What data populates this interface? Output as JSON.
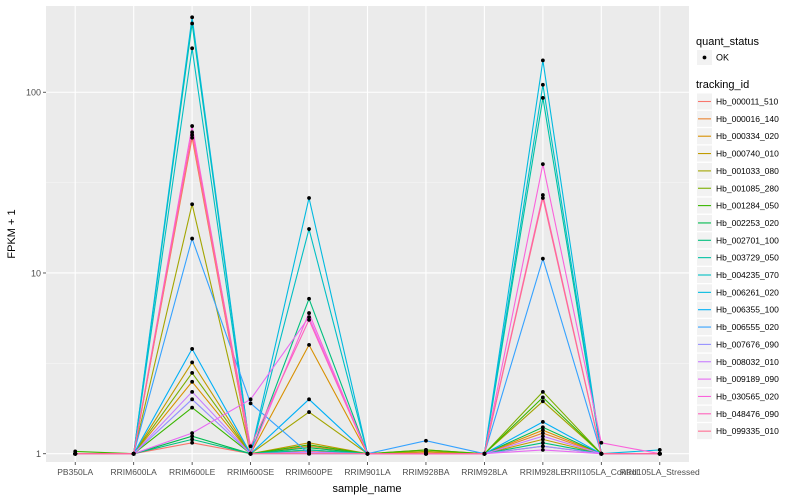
{
  "chart_data": {
    "type": "line",
    "xlabel": "sample_name",
    "ylabel": "FPKM + 1",
    "y_scale": "log10",
    "ylim": [
      0.9,
      300
    ],
    "y_ticks": [
      1,
      10,
      100
    ],
    "y_tick_labels": [
      "1",
      "10",
      "100"
    ],
    "categories": [
      "PB350LA",
      "RRIM600LA",
      "RRIM600LE",
      "RRIM600SE",
      "RRIM600PE",
      "RRIM901LA",
      "RRIM928BA",
      "RRIM928LA",
      "RRIM928LE",
      "RRII105LA_Control",
      "RRII105LA_Stressed"
    ],
    "grid": true,
    "background": "#ebebeb",
    "legend_position": "right",
    "legend_shape": {
      "title": "quant_status",
      "items": [
        "OK"
      ]
    },
    "legend_color": {
      "title": "tracking_id"
    },
    "series": [
      {
        "name": "Hb_000011_510",
        "color": "#F8766D",
        "values": [
          1.0,
          1.0,
          1.15,
          1.0,
          1.03,
          1.0,
          1.0,
          1.0,
          1.1,
          1.0,
          1.0
        ]
      },
      {
        "name": "Hb_000016_140",
        "color": "#EA8331",
        "values": [
          1.0,
          1.0,
          56.0,
          1.0,
          1.1,
          1.0,
          1.02,
          1.0,
          1.3,
          1.0,
          1.0
        ]
      },
      {
        "name": "Hb_000334_020",
        "color": "#D89000",
        "values": [
          1.0,
          1.0,
          2.5,
          1.0,
          4.0,
          1.0,
          1.05,
          1.0,
          1.35,
          1.0,
          1.0
        ]
      },
      {
        "name": "Hb_000740_010",
        "color": "#C09B00",
        "values": [
          1.0,
          1.0,
          3.2,
          1.0,
          1.15,
          1.0,
          1.0,
          1.0,
          1.2,
          1.0,
          1.0
        ]
      },
      {
        "name": "Hb_001033_080",
        "color": "#A3A500",
        "values": [
          1.0,
          1.0,
          24.0,
          1.0,
          1.7,
          1.0,
          1.03,
          1.0,
          1.95,
          1.0,
          1.0
        ]
      },
      {
        "name": "Hb_001085_280",
        "color": "#7CAE00",
        "values": [
          1.0,
          1.0,
          2.8,
          1.0,
          1.05,
          1.0,
          1.0,
          1.0,
          2.2,
          1.0,
          1.0
        ]
      },
      {
        "name": "Hb_001284_050",
        "color": "#39B600",
        "values": [
          1.03,
          1.0,
          1.8,
          1.0,
          1.12,
          1.0,
          1.05,
          1.0,
          2.05,
          1.0,
          1.0
        ]
      },
      {
        "name": "Hb_002253_020",
        "color": "#00BB4E",
        "values": [
          1.0,
          1.0,
          1.25,
          1.0,
          1.08,
          1.0,
          1.0,
          1.0,
          1.4,
          1.0,
          1.0
        ]
      },
      {
        "name": "Hb_002701_100",
        "color": "#00BF7D",
        "values": [
          1.0,
          1.0,
          1.2,
          1.0,
          7.2,
          1.0,
          1.0,
          1.0,
          1.15,
          1.0,
          1.0
        ]
      },
      {
        "name": "Hb_003729_050",
        "color": "#00C1A3",
        "values": [
          1.0,
          1.0,
          240.0,
          1.0,
          1.05,
          1.0,
          1.0,
          1.0,
          93.0,
          1.0,
          1.0
        ]
      },
      {
        "name": "Hb_004235_070",
        "color": "#00BFC4",
        "values": [
          1.0,
          1.0,
          175.0,
          1.0,
          17.5,
          1.0,
          1.0,
          1.0,
          110.0,
          1.0,
          1.0
        ]
      },
      {
        "name": "Hb_006261_020",
        "color": "#00BAE0",
        "values": [
          1.0,
          1.0,
          260.0,
          1.0,
          26.0,
          1.0,
          1.0,
          1.0,
          150.0,
          1.0,
          1.05
        ]
      },
      {
        "name": "Hb_006355_100",
        "color": "#00B0F6",
        "values": [
          1.0,
          1.0,
          3.8,
          1.0,
          2.0,
          1.0,
          1.0,
          1.0,
          1.5,
          1.0,
          1.0
        ]
      },
      {
        "name": "Hb_006555_020",
        "color": "#35A2FF",
        "values": [
          1.0,
          1.0,
          15.5,
          1.9,
          1.0,
          1.0,
          1.18,
          1.0,
          12.0,
          1.0,
          1.0
        ]
      },
      {
        "name": "Hb_007676_090",
        "color": "#9590FF",
        "values": [
          1.0,
          1.0,
          2.0,
          1.0,
          1.0,
          1.0,
          1.0,
          1.0,
          1.1,
          1.0,
          1.0
        ]
      },
      {
        "name": "Hb_008032_010",
        "color": "#C77CFF",
        "values": [
          1.0,
          1.0,
          2.2,
          1.0,
          1.02,
          1.0,
          1.0,
          1.0,
          1.25,
          1.0,
          1.0
        ]
      },
      {
        "name": "Hb_009189_090",
        "color": "#E76BF3",
        "values": [
          1.0,
          1.0,
          1.3,
          2.0,
          5.7,
          1.0,
          1.0,
          1.0,
          1.05,
          1.0,
          1.0
        ]
      },
      {
        "name": "Hb_030565_020",
        "color": "#FA62DB",
        "values": [
          1.0,
          1.0,
          65.0,
          1.0,
          6.0,
          1.0,
          1.0,
          1.0,
          40.0,
          1.15,
          1.0
        ]
      },
      {
        "name": "Hb_048476_090",
        "color": "#FF62BC",
        "values": [
          1.0,
          1.0,
          60.0,
          1.1,
          5.5,
          1.0,
          1.0,
          1.0,
          27.0,
          1.0,
          1.0
        ]
      },
      {
        "name": "Hb_099335_010",
        "color": "#FF6C91",
        "values": [
          1.0,
          1.0,
          58.0,
          1.0,
          1.0,
          1.0,
          1.0,
          1.0,
          26.0,
          1.0,
          1.0
        ]
      }
    ]
  }
}
